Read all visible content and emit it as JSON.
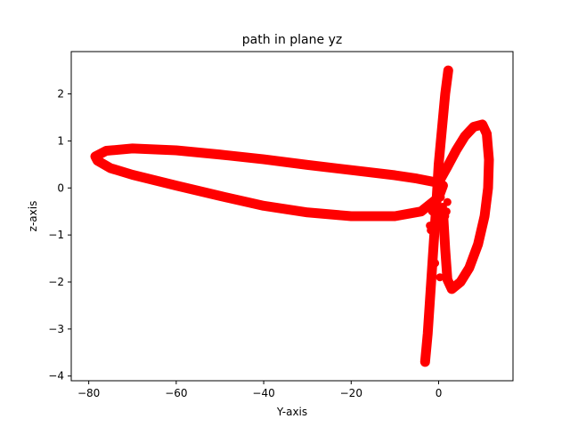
{
  "chart_data": {
    "type": "scatter",
    "title": "path in plane yz",
    "xlabel": "Y-axis",
    "ylabel": "z-axis",
    "xlim": [
      -84,
      17
    ],
    "ylim": [
      -4.1,
      2.9
    ],
    "xticks": [
      -80,
      -60,
      -40,
      -20,
      0
    ],
    "yticks": [
      -4,
      -3,
      -2,
      -1,
      0,
      1,
      2
    ],
    "grid": false,
    "marker_color": "#ff0000",
    "series": [
      {
        "segments": [
          {
            "shape": "loop",
            "x": [
              0.5,
              -5,
              -10,
              -20,
              -30,
              -40,
              -50,
              -60,
              -70,
              -76,
              -78.5,
              -78,
              -75,
              -70,
              -60,
              -50,
              -40,
              -30,
              -20,
              -10,
              -4,
              0,
              1
            ],
            "y": [
              0.1,
              0.2,
              0.27,
              0.38,
              0.49,
              0.61,
              0.71,
              0.8,
              0.84,
              0.79,
              0.67,
              0.58,
              0.42,
              0.28,
              0.05,
              -0.17,
              -0.38,
              -0.52,
              -0.6,
              -0.6,
              -0.5,
              -0.2,
              0.05
            ]
          },
          {
            "shape": "loop",
            "x": [
              0.5,
              2,
              4,
              6,
              8,
              10,
              11,
              11.5,
              11.3,
              10.5,
              9,
              7,
              5,
              3,
              2,
              1.5,
              1
            ],
            "y": [
              0.2,
              0.45,
              0.8,
              1.1,
              1.3,
              1.35,
              1.15,
              0.6,
              0,
              -0.6,
              -1.2,
              -1.7,
              -2.0,
              -2.15,
              -1.95,
              -1.3,
              -0.5
            ]
          },
          {
            "shape": "line",
            "x": [
              2.2,
              1.5,
              1.0,
              0.5,
              0,
              -0.5,
              -1,
              -1.5,
              -2,
              -2.5,
              -3.1
            ],
            "y": [
              2.5,
              2.0,
              1.5,
              1.0,
              0.5,
              -0.3,
              -1.0,
              -1.7,
              -2.4,
              -3.1,
              -3.7
            ]
          },
          {
            "shape": "cluster",
            "x": [
              -2,
              -1.5,
              -1,
              -0.5,
              0,
              0.5,
              1,
              1.5,
              2,
              -1.2,
              -0.8,
              0.3,
              1.2,
              -0.3,
              0.8,
              -1.8,
              1.8
            ],
            "y": [
              -0.8,
              -0.5,
              -0.3,
              0.1,
              0.3,
              -0.2,
              -0.4,
              -0.6,
              -0.3,
              -1.2,
              -1.6,
              -1.9,
              -1.0,
              -0.7,
              0.0,
              -0.9,
              -0.5
            ]
          }
        ]
      }
    ]
  }
}
